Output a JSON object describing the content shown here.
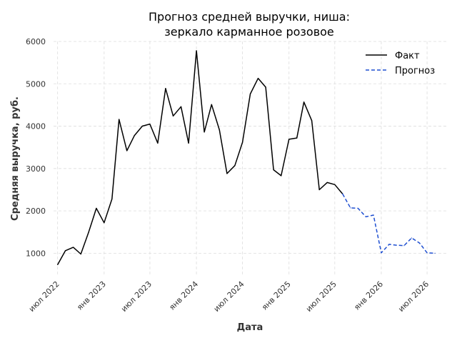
{
  "chart_data": {
    "type": "line",
    "title": "Прогноз средней выручки, ниша:",
    "subtitle": "зеркало карманное розовое",
    "xlabel": "Дата",
    "ylabel": "Средняя выручка, руб.",
    "ylim": [
      500,
      6000
    ],
    "yticks": [
      1000,
      2000,
      3000,
      4000,
      5000,
      6000
    ],
    "xlim": [
      "2022-06-15",
      "2026-09-15"
    ],
    "xticks": [
      {
        "date": "2022-07-01",
        "label": "июл 2022"
      },
      {
        "date": "2023-01-01",
        "label": "янв 2023"
      },
      {
        "date": "2023-07-01",
        "label": "июл 2023"
      },
      {
        "date": "2024-01-01",
        "label": "янв 2024"
      },
      {
        "date": "2024-07-01",
        "label": "июл 2024"
      },
      {
        "date": "2025-01-01",
        "label": "янв 2025"
      },
      {
        "date": "2025-07-01",
        "label": "июл 2025"
      },
      {
        "date": "2026-01-01",
        "label": "янв 2026"
      },
      {
        "date": "2026-07-01",
        "label": "июл 2026"
      }
    ],
    "grid": true,
    "legend_position": "top-right",
    "series": [
      {
        "name": "Факт",
        "style": "solid",
        "color": "#000000",
        "points": [
          [
            "2022-07-01",
            730
          ],
          [
            "2022-08-01",
            1060
          ],
          [
            "2022-09-01",
            1140
          ],
          [
            "2022-10-01",
            980
          ],
          [
            "2022-11-01",
            1500
          ],
          [
            "2022-12-01",
            2060
          ],
          [
            "2023-01-01",
            1720
          ],
          [
            "2023-02-01",
            2280
          ],
          [
            "2023-03-01",
            4160
          ],
          [
            "2023-04-01",
            3420
          ],
          [
            "2023-05-01",
            3780
          ],
          [
            "2023-06-01",
            4000
          ],
          [
            "2023-07-01",
            4050
          ],
          [
            "2023-08-01",
            3600
          ],
          [
            "2023-09-01",
            4890
          ],
          [
            "2023-10-01",
            4240
          ],
          [
            "2023-11-01",
            4460
          ],
          [
            "2023-12-01",
            3600
          ],
          [
            "2024-01-01",
            5780
          ],
          [
            "2024-02-01",
            3860
          ],
          [
            "2024-03-01",
            4510
          ],
          [
            "2024-04-01",
            3910
          ],
          [
            "2024-05-01",
            2880
          ],
          [
            "2024-06-01",
            3070
          ],
          [
            "2024-07-01",
            3620
          ],
          [
            "2024-08-01",
            4760
          ],
          [
            "2024-09-01",
            5130
          ],
          [
            "2024-10-01",
            4920
          ],
          [
            "2024-11-01",
            2970
          ],
          [
            "2024-12-01",
            2830
          ],
          [
            "2025-01-01",
            3690
          ],
          [
            "2025-02-01",
            3720
          ],
          [
            "2025-03-01",
            4570
          ],
          [
            "2025-04-01",
            4130
          ],
          [
            "2025-05-01",
            2500
          ],
          [
            "2025-06-01",
            2670
          ],
          [
            "2025-07-01",
            2620
          ],
          [
            "2025-08-01",
            2400
          ]
        ]
      },
      {
        "name": "Прогноз",
        "style": "dashed",
        "color": "#1f4fd1",
        "points": [
          [
            "2025-08-01",
            2400
          ],
          [
            "2025-09-01",
            2070
          ],
          [
            "2025-10-01",
            2060
          ],
          [
            "2025-11-01",
            1860
          ],
          [
            "2025-12-01",
            1900
          ],
          [
            "2026-01-01",
            1010
          ],
          [
            "2026-02-01",
            1210
          ],
          [
            "2026-03-01",
            1190
          ],
          [
            "2026-04-01",
            1180
          ],
          [
            "2026-05-01",
            1360
          ],
          [
            "2026-06-01",
            1240
          ],
          [
            "2026-07-01",
            1010
          ],
          [
            "2026-08-01",
            1000
          ]
        ]
      }
    ]
  }
}
